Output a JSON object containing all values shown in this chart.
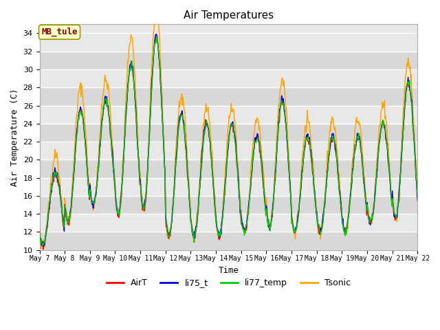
{
  "title": "Air Temperatures",
  "xlabel": "Time",
  "ylabel": "Air Temperature (C)",
  "ylim": [
    10,
    35
  ],
  "annotation": "MB_tule",
  "annotation_color": "#8B0000",
  "annotation_bg": "#FFFFCC",
  "legend_labels": [
    "AirT",
    "li75_t",
    "li77_temp",
    "Tsonic"
  ],
  "line_colors": [
    "#FF0000",
    "#0000FF",
    "#00CC00",
    "#FFA500"
  ],
  "xtick_labels": [
    "May 7",
    "May 8",
    "May 9",
    "May 10",
    "May 11",
    "May 12",
    "May 13",
    "May 14",
    "May 15",
    "May 16",
    "May 17",
    "May 18",
    "May 19",
    "May 20",
    "May 21",
    "May 22"
  ],
  "bg_color": "#E8E8E8",
  "grid_color": "#FFFFFF",
  "band_color": "#D8D8D8",
  "yticks": [
    10,
    12,
    14,
    16,
    18,
    20,
    22,
    24,
    26,
    28,
    30,
    32,
    34
  ],
  "n_days": 15,
  "pts_per_day": 48,
  "day_mins": [
    10.5,
    13.0,
    15.0,
    14.0,
    14.5,
    11.5,
    11.5,
    11.5,
    12.0,
    12.5,
    12.0,
    12.0,
    12.0,
    13.0,
    13.5
  ],
  "day_maxs": [
    18.5,
    25.5,
    26.5,
    30.5,
    33.5,
    25.0,
    24.0,
    24.0,
    22.5,
    26.5,
    22.5,
    22.5,
    22.5,
    24.0,
    28.5
  ],
  "tsonic_extra": [
    2.0,
    2.5,
    2.5,
    3.0,
    3.0,
    2.0,
    2.0,
    2.0,
    2.0,
    2.5,
    2.0,
    2.0,
    2.0,
    2.0,
    2.5
  ],
  "peak_phase": 0.38,
  "seed": 7
}
